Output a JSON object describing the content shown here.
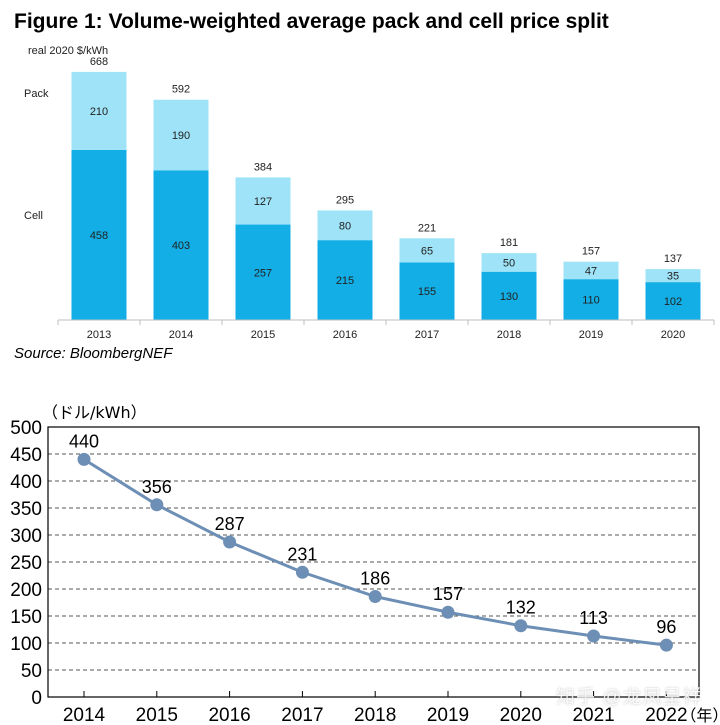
{
  "figure1": {
    "title": "Figure 1: Volume-weighted average pack and cell price split",
    "unit_label": "real 2020 $/kWh",
    "source": "Source: BloombergNEF",
    "colors": {
      "pack": "#9ee3f7",
      "cell": "#12aee5",
      "axis": "#bfbfbf",
      "text": "#222222"
    }
  },
  "figure2": {
    "colors": {
      "line": "#6e8fb5",
      "grid": "#555555",
      "axis": "#000000"
    },
    "watermark": "知乎 @龙凤呈祥"
  },
  "chart_data": [
    {
      "type": "bar",
      "stacked": true,
      "title": "Figure 1: Volume-weighted average pack and cell price split",
      "ylabel": "real 2020 $/kWh",
      "categories": [
        "2013",
        "2014",
        "2015",
        "2016",
        "2017",
        "2018",
        "2019",
        "2020"
      ],
      "series": [
        {
          "name": "Cell",
          "values": [
            458,
            403,
            257,
            215,
            155,
            130,
            110,
            102
          ]
        },
        {
          "name": "Pack",
          "values": [
            210,
            190,
            127,
            80,
            65,
            50,
            47,
            35
          ]
        }
      ],
      "totals": [
        668,
        592,
        384,
        295,
        221,
        181,
        157,
        137
      ],
      "ylim": [
        0,
        700
      ],
      "grid": false
    },
    {
      "type": "line",
      "ylabel": "（ドル/kWh）",
      "x_unit_label": "（年）",
      "x": [
        "2014",
        "2015",
        "2016",
        "2017",
        "2018",
        "2019",
        "2020",
        "2021",
        "2022"
      ],
      "values": [
        440,
        356,
        287,
        231,
        186,
        157,
        132,
        113,
        96
      ],
      "ylim": [
        0,
        500
      ],
      "yticks": [
        0,
        50,
        100,
        150,
        200,
        250,
        300,
        350,
        400,
        450,
        500
      ],
      "grid": true
    }
  ]
}
